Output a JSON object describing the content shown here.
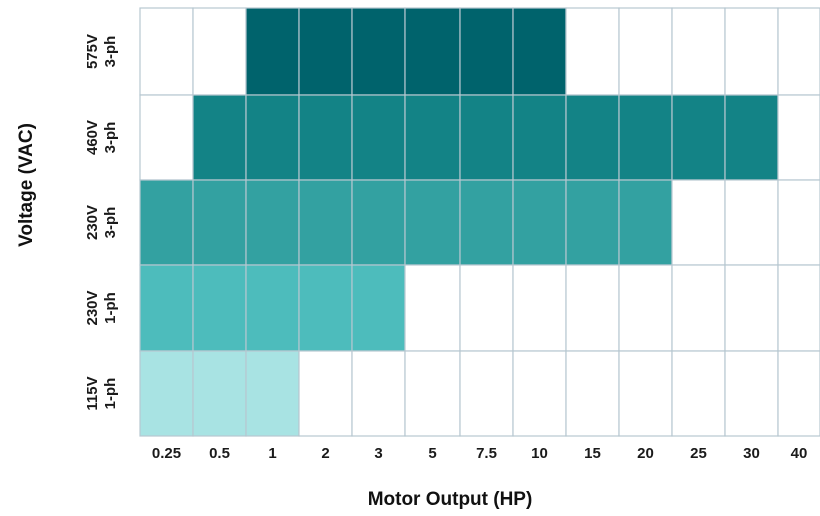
{
  "chart_data": {
    "type": "heatmap",
    "xlabel": "Motor Output (HP)",
    "ylabel": "Voltage  (VAC)",
    "x_categories": [
      "0.25",
      "0.5",
      "1",
      "2",
      "3",
      "5",
      "7.5",
      "10",
      "15",
      "20",
      "25",
      "30",
      "40"
    ],
    "rows": [
      {
        "line1": "575V",
        "line2": "3-ph",
        "color": "#00636c",
        "available": [
          "1",
          "2",
          "3",
          "5",
          "7.5",
          "10"
        ]
      },
      {
        "line1": "460V",
        "line2": "3-ph",
        "color": "#138386",
        "available": [
          "0.5",
          "1",
          "2",
          "3",
          "5",
          "7.5",
          "10",
          "15",
          "20",
          "25",
          "30"
        ]
      },
      {
        "line1": "230V",
        "line2": "3-ph",
        "color": "#33a1a1",
        "available": [
          "0.25",
          "0.5",
          "1",
          "2",
          "3",
          "5",
          "7.5",
          "10",
          "15",
          "20"
        ]
      },
      {
        "line1": "230V",
        "line2": "1-ph",
        "color": "#4dbcbc",
        "available": [
          "0.25",
          "0.5",
          "1",
          "2",
          "3"
        ]
      },
      {
        "line1": "115V",
        "line2": "1-ph",
        "color": "#a8e3e3",
        "available": [
          "0.25",
          "0.5",
          "1"
        ]
      }
    ],
    "empty_color": "#ffffff",
    "grid_color": "#b7c7d0",
    "grid": true,
    "legend": "none"
  }
}
